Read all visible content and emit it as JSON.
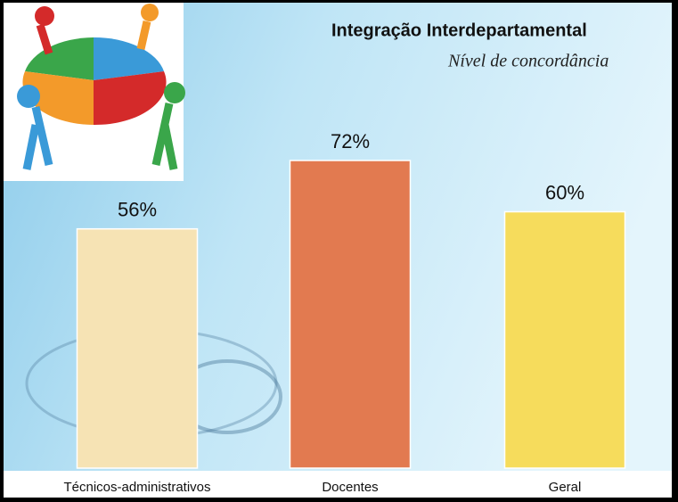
{
  "chart_data": {
    "type": "bar",
    "title": "Integração Interdepartamental",
    "subtitle": "Nível de concordância",
    "categories": [
      "Técnicos-administrativos",
      "Docentes",
      "Geral"
    ],
    "values": [
      56,
      72,
      60
    ],
    "value_labels": [
      "56%",
      "72%",
      "60%"
    ],
    "colors": [
      "#f6e3b4",
      "#e27a50",
      "#f6dc5c"
    ]
  }
}
